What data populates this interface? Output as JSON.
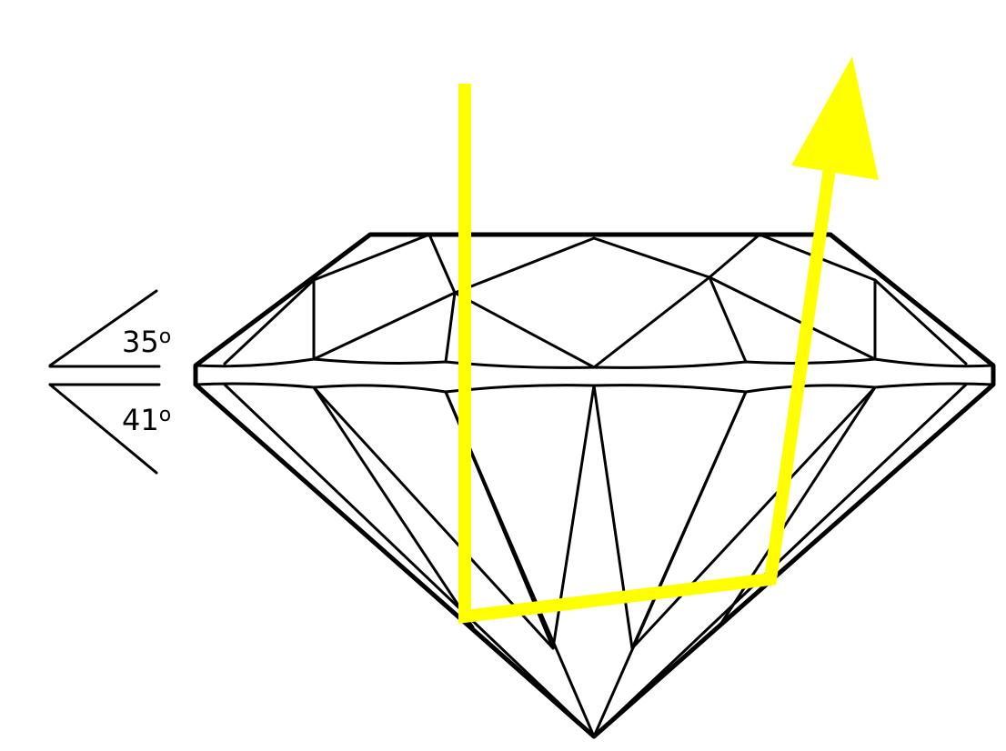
{
  "diagram": {
    "colors": {
      "ray": "#ffff00",
      "lines": "#000000",
      "background": "#ffffff"
    },
    "angles": {
      "crown": {
        "value": "35",
        "symbol": "o"
      },
      "pavilion": {
        "value": "41",
        "symbol": "o"
      }
    },
    "icons": {
      "gem": "diamond-side-profile-icon",
      "ray": "light-ray-arrow-icon"
    }
  }
}
